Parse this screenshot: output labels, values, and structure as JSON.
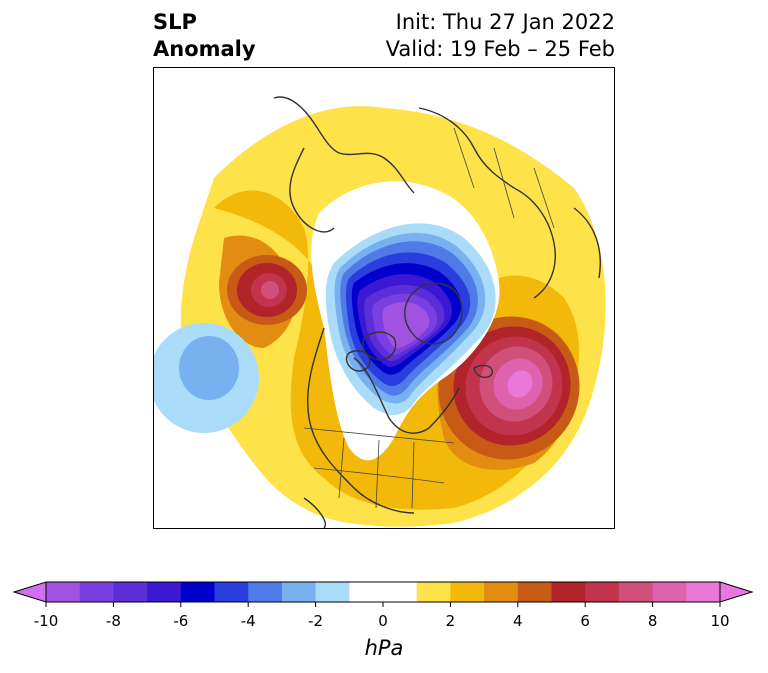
{
  "title": {
    "line1": "SLP",
    "line2": "Anomaly",
    "init": "Init: Thu 27 Jan 2022",
    "valid": "Valid: 19 Feb – 25 Feb"
  },
  "colorbar": {
    "units": "hPa",
    "min": -10,
    "max": 10,
    "tick_labels": [
      "-10",
      "-8",
      "-6",
      "-4",
      "-2",
      "0",
      "2",
      "4",
      "6",
      "8",
      "10"
    ],
    "tick_values": [
      -10,
      -8,
      -6,
      -4,
      -2,
      0,
      2,
      4,
      6,
      8,
      10
    ],
    "bins": [
      {
        "lo": -10,
        "hi": -9,
        "color": "#a052e0"
      },
      {
        "lo": -9,
        "hi": -8,
        "color": "#7a3fe0"
      },
      {
        "lo": -8,
        "hi": -7,
        "color": "#5b2ed8"
      },
      {
        "lo": -7,
        "hi": -6,
        "color": "#3a18d4"
      },
      {
        "lo": -6,
        "hi": -5,
        "color": "#0000cc"
      },
      {
        "lo": -5,
        "hi": -4,
        "color": "#2a3ee0"
      },
      {
        "lo": -4,
        "hi": -3,
        "color": "#4f7ae8"
      },
      {
        "lo": -3,
        "hi": -2,
        "color": "#78b0f0"
      },
      {
        "lo": -2,
        "hi": -1,
        "color": "#aadcfa"
      },
      {
        "lo": -1,
        "hi": 1,
        "color": "#ffffff"
      },
      {
        "lo": 1,
        "hi": 2,
        "color": "#fde24a"
      },
      {
        "lo": 2,
        "hi": 3,
        "color": "#f2b90a"
      },
      {
        "lo": 3,
        "hi": 4,
        "color": "#e38c12"
      },
      {
        "lo": 4,
        "hi": 5,
        "color": "#c75a14"
      },
      {
        "lo": 5,
        "hi": 6,
        "color": "#b0242a"
      },
      {
        "lo": 6,
        "hi": 7,
        "color": "#c2334e"
      },
      {
        "lo": 7,
        "hi": 8,
        "color": "#d0507a"
      },
      {
        "lo": 8,
        "hi": 9,
        "color": "#de62ae"
      },
      {
        "lo": 9,
        "hi": 10,
        "color": "#ea78d8"
      }
    ],
    "extend_low_color": "#d070f0",
    "extend_high_color": "#e878e0"
  },
  "map": {
    "projection": "north-polar-stereographic",
    "colors": {
      "land_outline": "#333333",
      "border": "#444444"
    }
  }
}
